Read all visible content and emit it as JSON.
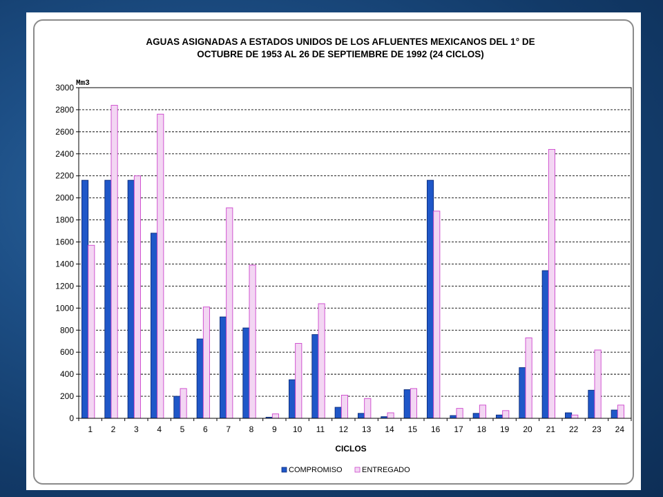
{
  "chart_data": {
    "type": "bar",
    "title_line1": "AGUAS ASIGNADAS A ESTADOS UNIDOS DE LOS AFLUENTES MEXICANOS DEL 1° DE",
    "title_line2": "OCTUBRE DE 1953 AL 26 DE SEPTIEMBRE DE 1992 (24 CICLOS)",
    "xlabel": "CICLOS",
    "ylabel": "Mm3",
    "ylim": [
      0,
      3000
    ],
    "yticks": [
      0,
      200,
      400,
      600,
      800,
      1000,
      1200,
      1400,
      1600,
      1800,
      2000,
      2200,
      2400,
      2600,
      2800,
      3000
    ],
    "grid": true,
    "legend_position": "bottom",
    "categories": [
      "1",
      "2",
      "3",
      "4",
      "5",
      "6",
      "7",
      "8",
      "9",
      "10",
      "11",
      "12",
      "13",
      "14",
      "15",
      "16",
      "17",
      "18",
      "19",
      "20",
      "21",
      "22",
      "23",
      "24"
    ],
    "series": [
      {
        "name": "COMPROMISO",
        "color": "#1f57c8",
        "values": [
          2160,
          2160,
          2160,
          1680,
          200,
          720,
          920,
          820,
          10,
          350,
          760,
          100,
          45,
          15,
          260,
          2160,
          25,
          45,
          30,
          460,
          1340,
          50,
          255,
          75
        ]
      },
      {
        "name": "ENTREGADO",
        "color": "#f3d6f3",
        "stroke": "#cc44cc",
        "values": [
          1570,
          2840,
          2200,
          2760,
          270,
          1010,
          1910,
          1390,
          40,
          680,
          1040,
          210,
          180,
          50,
          270,
          1880,
          90,
          120,
          70,
          730,
          2440,
          30,
          620,
          120
        ]
      }
    ]
  }
}
